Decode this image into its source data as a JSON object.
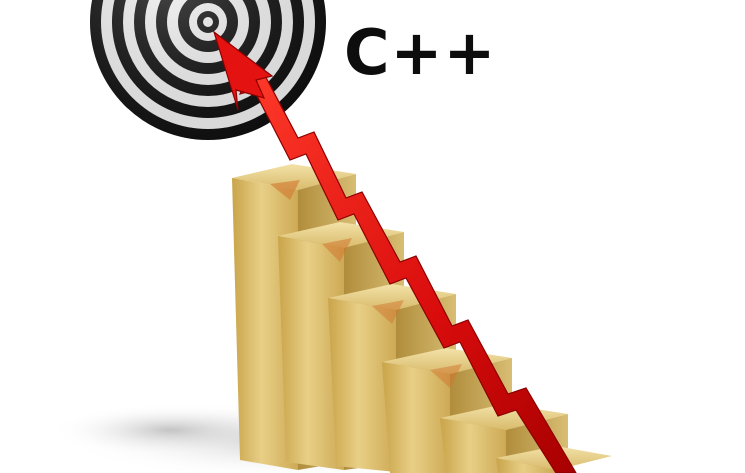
{
  "image": {
    "headline": "C++",
    "palette": {
      "background": "#ffffff",
      "target_dark": "#111111",
      "target_light": "#f2f2f2",
      "bar_gold": "#d7b766",
      "bar_gold_dark": "#a98a3e",
      "arrow_red": "#e01010",
      "arrow_dark": "#8d0000",
      "text": "#0d0d0d"
    },
    "objects": [
      {
        "kind": "dartboard-target",
        "icon": "target-icon"
      },
      {
        "kind": "gold-bar-chart",
        "bar_count": 6,
        "trend": "rising"
      },
      {
        "kind": "zigzag-red-arrow",
        "direction": "up-left"
      }
    ]
  }
}
